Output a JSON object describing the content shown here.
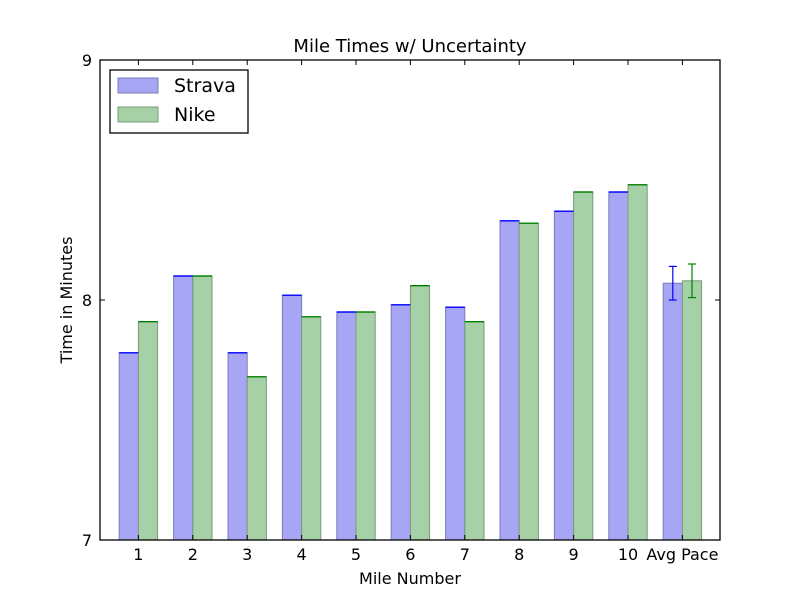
{
  "chart_data": {
    "type": "bar",
    "title": "Mile Times w/ Uncertainty",
    "xlabel": "Mile Number",
    "ylabel": "Time in Minutes",
    "ylim": [
      7,
      9
    ],
    "yticks": [
      "7",
      "8",
      "9"
    ],
    "categories": [
      "1",
      "2",
      "3",
      "4",
      "5",
      "6",
      "7",
      "8",
      "9",
      "10",
      "Avg Pace"
    ],
    "legend_position": "top-left",
    "series": [
      {
        "name": "Strava",
        "color": "#a6a6f5",
        "edge": "#7c7cb8",
        "error_color": "#0000ff",
        "values": [
          7.78,
          8.1,
          7.78,
          8.02,
          7.95,
          7.98,
          7.97,
          8.33,
          8.37,
          8.45,
          8.07
        ],
        "errors": [
          0,
          0,
          0,
          0,
          0,
          0,
          0,
          0,
          0,
          0,
          0.07
        ]
      },
      {
        "name": "Nike",
        "color": "#a6d1a6",
        "edge": "#7b9a7b",
        "error_color": "#008000",
        "values": [
          7.91,
          8.1,
          7.68,
          7.93,
          7.95,
          8.06,
          7.91,
          8.32,
          8.45,
          8.48,
          8.08
        ],
        "errors": [
          0,
          0,
          0,
          0,
          0,
          0,
          0,
          0,
          0,
          0,
          0.07
        ]
      }
    ]
  }
}
